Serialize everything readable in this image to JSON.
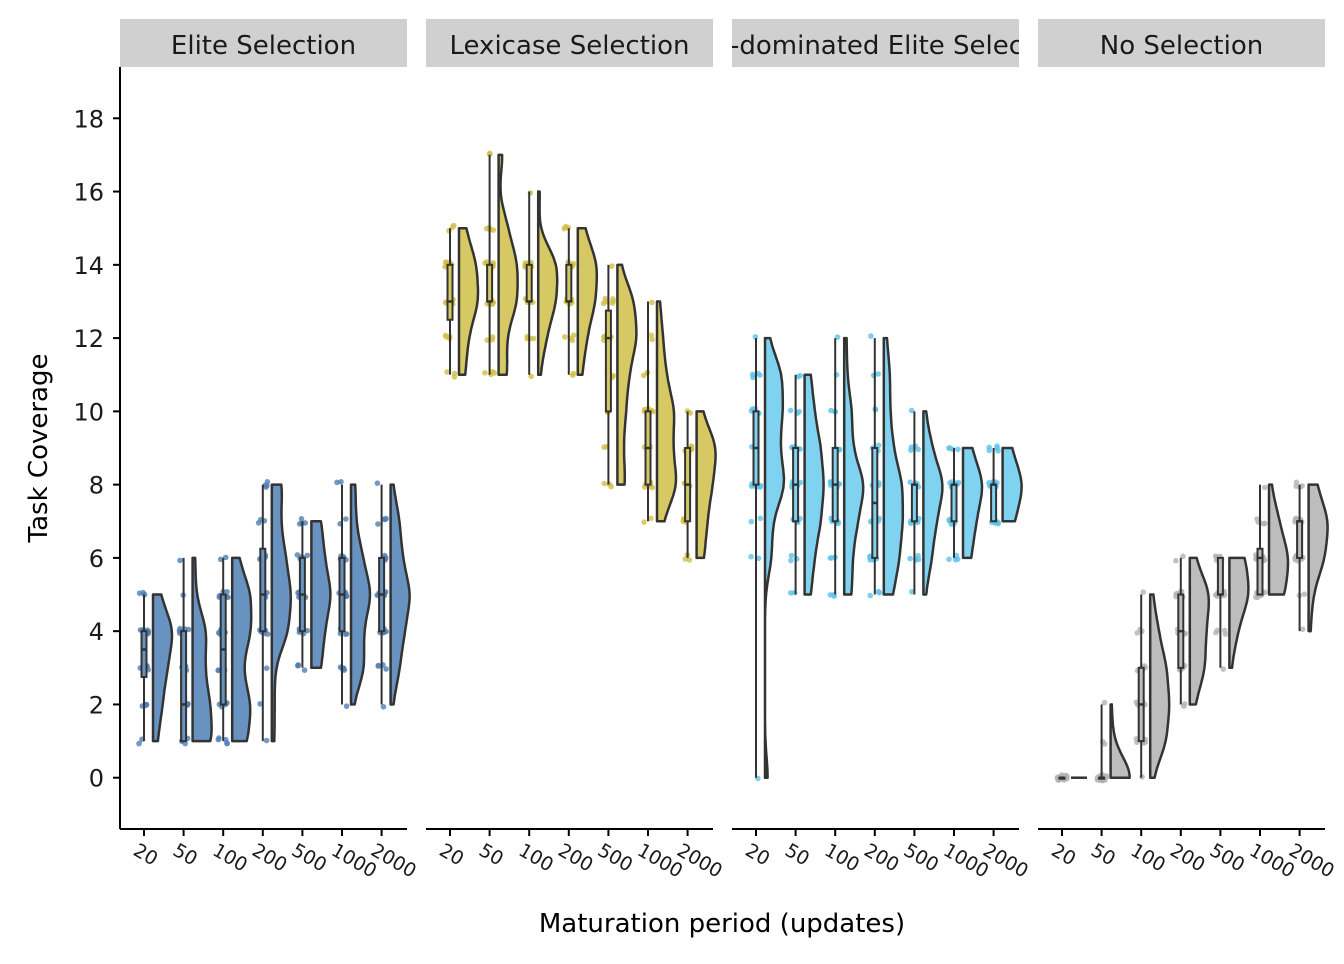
{
  "chart_data": {
    "type": "raincloud",
    "xlabel": "Maturation period (updates)",
    "ylabel": "Task Coverage",
    "ylim": [
      -1.4,
      19.4
    ],
    "yticks": [
      0,
      2,
      4,
      6,
      8,
      10,
      12,
      14,
      16,
      18
    ],
    "categories": [
      "20",
      "50",
      "100",
      "200",
      "500",
      "1000",
      "2000"
    ],
    "grid": false,
    "legend": "none",
    "note_values": "counts of runs per task-coverage value, per maturation period",
    "facets": [
      {
        "title": "Elite Selection",
        "color": "#4f7fb5",
        "fill": "#6893c1",
        "groups": [
          {
            "1": 2,
            "2": 4,
            "3": 6,
            "4": 9,
            "5": 3
          },
          {
            "1": 7,
            "2": 6,
            "3": 4,
            "4": 5,
            "5": 1,
            "6": 1
          },
          {
            "1": 5,
            "2": 6,
            "3": 3,
            "4": 6,
            "5": 6,
            "6": 2
          },
          {
            "1": 1,
            "2": 1,
            "3": 1,
            "4": 6,
            "5": 7,
            "6": 5,
            "7": 3,
            "8": 4
          },
          {
            "3": 4,
            "4": 5,
            "5": 8,
            "6": 5,
            "7": 4
          },
          {
            "2": 1,
            "3": 6,
            "4": 5,
            "5": 9,
            "6": 5,
            "7": 2,
            "8": 2
          },
          {
            "2": 1,
            "3": 4,
            "4": 6,
            "5": 9,
            "6": 5,
            "7": 4,
            "8": 1
          }
        ]
      },
      {
        "title": "Lexicase Selection",
        "color": "#cfbf45",
        "fill": "#d6c863",
        "groups": [
          {
            "11": 3,
            "12": 4,
            "13": 9,
            "14": 8,
            "15": 3
          },
          {
            "11": 4,
            "12": 3,
            "13": 8,
            "14": 8,
            "15": 4,
            "17": 2
          },
          {
            "11": 1,
            "12": 4,
            "13": 9,
            "14": 10,
            "16": 1
          },
          {
            "11": 2,
            "12": 4,
            "13": 8,
            "14": 9,
            "15": 3
          },
          {
            "8": 3,
            "9": 2,
            "10": 3,
            "11": 4,
            "12": 7,
            "13": 6,
            "14": 1
          },
          {
            "7": 2,
            "8": 7,
            "9": 5,
            "10": 6,
            "11": 3,
            "12": 2,
            "13": 1
          },
          {
            "6": 3,
            "7": 4,
            "8": 6,
            "9": 8,
            "10": 2
          }
        ]
      },
      {
        "title": "Non-dominated Elite Selection",
        "color": "#5cc3ea",
        "fill": "#7fd3f0",
        "groups": [
          {
            "0": 1,
            "6": 2,
            "7": 2,
            "8": 6,
            "9": 4,
            "10": 5,
            "11": 5,
            "12": 1
          },
          {
            "5": 2,
            "6": 3,
            "7": 5,
            "8": 6,
            "9": 5,
            "10": 3,
            "11": 2
          },
          {
            "5": 3,
            "6": 3,
            "7": 5,
            "8": 8,
            "9": 3,
            "10": 3,
            "11": 1,
            "12": 1
          },
          {
            "5": 3,
            "6": 5,
            "7": 6,
            "8": 6,
            "9": 3,
            "10": 2,
            "11": 2,
            "12": 1
          },
          {
            "5": 1,
            "6": 4,
            "7": 6,
            "8": 10,
            "9": 4,
            "10": 1
          },
          {
            "6": 4,
            "7": 6,
            "8": 10,
            "9": 4
          },
          {
            "7": 7,
            "8": 12,
            "9": 5
          }
        ]
      },
      {
        "title": "No Selection",
        "color": "#b3b3b3",
        "fill": "#bdbdbd",
        "groups": [
          {
            "0": 25
          },
          {
            "0": 22,
            "1": 2,
            "2": 1
          },
          {
            "0": 1,
            "1": 6,
            "2": 7,
            "3": 6,
            "4": 3,
            "5": 1
          },
          {
            "2": 2,
            "3": 6,
            "4": 6,
            "5": 8,
            "6": 2
          },
          {
            "3": 1,
            "4": 4,
            "5": 10,
            "6": 8
          },
          {
            "5": 8,
            "6": 10,
            "7": 5,
            "8": 1
          },
          {
            "4": 1,
            "5": 2,
            "6": 8,
            "7": 10,
            "8": 4
          }
        ]
      }
    ]
  }
}
